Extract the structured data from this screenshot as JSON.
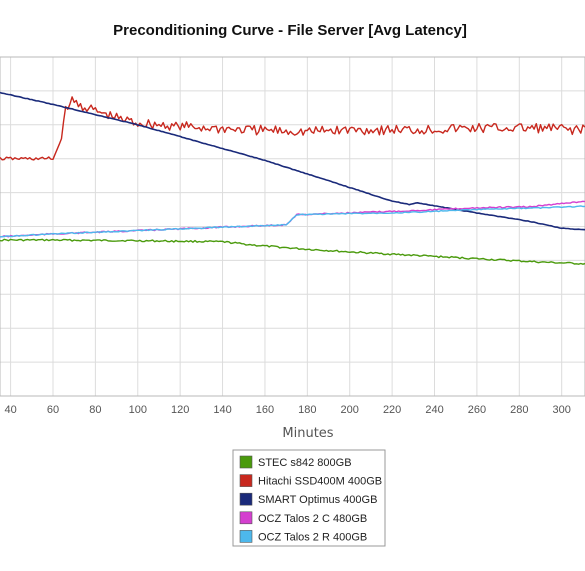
{
  "chart_data": {
    "type": "line",
    "title": "Preconditioning Curve - File Server [Avg Latency]",
    "xlabel": "Minutes",
    "ylabel": "",
    "x_ticks": [
      40,
      60,
      80,
      100,
      120,
      140,
      160,
      180,
      200,
      220,
      240,
      260,
      280,
      300
    ],
    "xlim": [
      35,
      311
    ],
    "ylim": [
      0,
      10
    ],
    "y_grid_values": [
      1,
      2,
      3,
      4,
      5,
      6,
      7,
      8,
      9
    ],
    "grid": true,
    "legend_position": "bottom-center",
    "series": [
      {
        "name": "STEC s842 800GB",
        "color": "#4a9a0c",
        "points": [
          [
            35,
            5.4
          ],
          [
            60,
            5.4
          ],
          [
            100,
            5.42
          ],
          [
            140,
            5.45
          ],
          [
            155,
            5.55
          ],
          [
            175,
            5.65
          ],
          [
            200,
            5.75
          ],
          [
            230,
            5.85
          ],
          [
            260,
            5.95
          ],
          [
            290,
            6.05
          ],
          [
            311,
            6.1
          ]
        ]
      },
      {
        "name": "Hitachi SSD400M 400GB",
        "color": "#c8281e",
        "points": [
          [
            35,
            3.0
          ],
          [
            55,
            3.0
          ],
          [
            60,
            3.0
          ],
          [
            63,
            2.6
          ],
          [
            66,
            1.6
          ],
          [
            68,
            1.3
          ],
          [
            72,
            1.4
          ],
          [
            80,
            1.6
          ],
          [
            90,
            1.8
          ],
          [
            100,
            1.95
          ],
          [
            120,
            2.05
          ],
          [
            150,
            2.15
          ],
          [
            180,
            2.2
          ],
          [
            200,
            2.15
          ],
          [
            230,
            2.15
          ],
          [
            260,
            2.1
          ],
          [
            290,
            2.1
          ],
          [
            311,
            2.15
          ]
        ]
      },
      {
        "name": "SMART Optimus 400GB",
        "color": "#1a2a7a",
        "points": [
          [
            35,
            1.05
          ],
          [
            60,
            1.4
          ],
          [
            80,
            1.7
          ],
          [
            100,
            2.0
          ],
          [
            120,
            2.35
          ],
          [
            140,
            2.7
          ],
          [
            160,
            3.05
          ],
          [
            180,
            3.45
          ],
          [
            200,
            3.85
          ],
          [
            220,
            4.25
          ],
          [
            228,
            4.35
          ],
          [
            232,
            4.3
          ],
          [
            250,
            4.5
          ],
          [
            270,
            4.7
          ],
          [
            285,
            4.85
          ],
          [
            300,
            5.05
          ],
          [
            311,
            5.1
          ]
        ]
      },
      {
        "name": "OCZ Talos 2 C 480GB",
        "color": "#d43fcf",
        "points": [
          [
            35,
            5.3
          ],
          [
            60,
            5.22
          ],
          [
            100,
            5.12
          ],
          [
            140,
            5.02
          ],
          [
            170,
            4.95
          ],
          [
            175,
            4.65
          ],
          [
            200,
            4.6
          ],
          [
            230,
            4.53
          ],
          [
            260,
            4.45
          ],
          [
            285,
            4.42
          ],
          [
            300,
            4.32
          ],
          [
            311,
            4.25
          ]
        ]
      },
      {
        "name": "OCZ Talos 2 R 400GB",
        "color": "#4db8ec",
        "points": [
          [
            35,
            5.3
          ],
          [
            60,
            5.22
          ],
          [
            100,
            5.12
          ],
          [
            140,
            5.02
          ],
          [
            170,
            4.95
          ],
          [
            175,
            4.65
          ],
          [
            200,
            4.62
          ],
          [
            230,
            4.58
          ],
          [
            260,
            4.5
          ],
          [
            290,
            4.45
          ],
          [
            311,
            4.4
          ]
        ]
      }
    ]
  }
}
